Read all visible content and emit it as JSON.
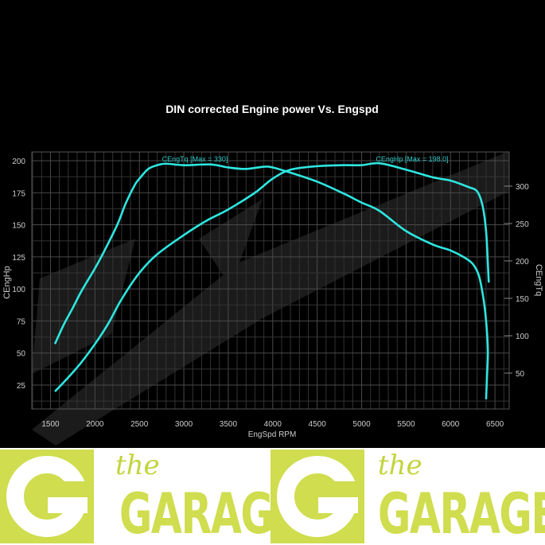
{
  "chart_data": {
    "type": "line",
    "title": "DIN corrected Engine power Vs. Engspd",
    "xlabel": "EngSpd RPM",
    "ylabel_left": "CEngHp",
    "ylabel_right": "CEngTq",
    "xlim": [
      1290,
      6660
    ],
    "ylim_left": [
      6.4,
      206.8
    ],
    "ylim_right": [
      2.1,
      345.7
    ],
    "x_ticks": [
      1500,
      2000,
      2500,
      3000,
      3500,
      4000,
      4500,
      5000,
      5500,
      6000,
      6500
    ],
    "y_left_ticks": [
      25,
      50,
      75,
      100,
      125,
      150,
      175,
      200
    ],
    "y_right_ticks": [
      50,
      100,
      150,
      200,
      250,
      300
    ],
    "grid": true,
    "background": "#000000",
    "series": [
      {
        "name": "CEngTq",
        "label": "CEngTq [Max = 330]",
        "axis": "right",
        "color": "#2ee6e0",
        "x": [
          1550,
          1650,
          1750,
          1850,
          2000,
          2100,
          2250,
          2350,
          2450,
          2500,
          2600,
          2700,
          2800,
          3000,
          3300,
          3500,
          3700,
          3900,
          4000,
          4200,
          4500,
          4800,
          5000,
          5200,
          5500,
          5800,
          6000,
          6150,
          6250,
          6320,
          6370,
          6400,
          6420,
          6410,
          6400
        ],
        "values": [
          89,
          115,
          137,
          160,
          190,
          212,
          248,
          278,
          302,
          310,
          323,
          328,
          330,
          328,
          329,
          325,
          323,
          326,
          325,
          318,
          306,
          290,
          278,
          267,
          240,
          222,
          214,
          205,
          196,
          180,
          150,
          120,
          80,
          45,
          15
        ]
      },
      {
        "name": "CEngHp",
        "label": "CEngHp [Max = 198.0]",
        "axis": "left",
        "color": "#2ee6e0",
        "x": [
          1550,
          1700,
          1850,
          2000,
          2150,
          2300,
          2500,
          2700,
          3000,
          3250,
          3500,
          3800,
          4000,
          4200,
          4500,
          4800,
          5000,
          5200,
          5500,
          5800,
          6000,
          6200,
          6300,
          6360,
          6400,
          6420,
          6430
        ],
        "values": [
          20,
          31,
          43,
          57,
          73,
          92,
          112.5,
          127,
          142,
          153,
          162,
          175,
          186,
          193,
          195.7,
          196.5,
          196.5,
          198,
          193,
          187,
          184.5,
          179.5,
          176,
          165,
          145,
          120,
          105
        ]
      }
    ]
  },
  "logo": {
    "the": "the",
    "name": "GARAGE",
    "brand_color": "#cfdd4e"
  }
}
